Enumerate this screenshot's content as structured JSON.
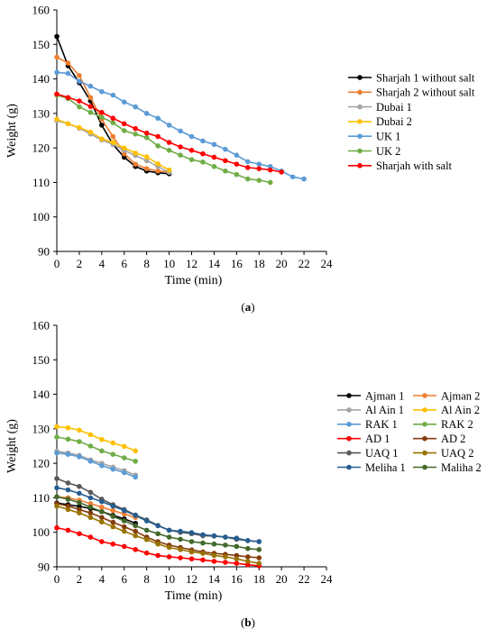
{
  "chart_data": [
    {
      "type": "line",
      "caption": "(a)",
      "caption_letter": "a",
      "xlabel": "Time (min)",
      "ylabel": "Weight (g)",
      "xlim": [
        0,
        24
      ],
      "ylim": [
        90,
        160
      ],
      "xticks": [
        0,
        2,
        4,
        6,
        8,
        10,
        12,
        14,
        16,
        18,
        20,
        22,
        24
      ],
      "yticks": [
        90,
        100,
        110,
        120,
        130,
        140,
        150,
        160
      ],
      "grid": false,
      "legend": "right",
      "series": [
        {
          "name": "Sharjah 1 without salt",
          "color": "#000000",
          "x": [
            0,
            1,
            2,
            3,
            4,
            5,
            6,
            7,
            8,
            9,
            10
          ],
          "y": [
            152.3,
            143.8,
            138.9,
            133.6,
            126.6,
            121.0,
            117.3,
            114.6,
            113.3,
            112.8,
            112.5
          ]
        },
        {
          "name": "Sharjah 2 without salt",
          "color": "#ED7D31",
          "x": [
            0,
            1,
            2,
            3,
            4,
            5,
            6,
            7,
            8,
            9,
            10
          ],
          "y": [
            146.3,
            144.6,
            141.0,
            134.6,
            128.3,
            123.3,
            118.3,
            115.3,
            114.0,
            113.3,
            113.0
          ]
        },
        {
          "name": "Dubai 1",
          "color": "#A5A5A5",
          "x": [
            0,
            1,
            2,
            3,
            4,
            5,
            6,
            7,
            8,
            9,
            10
          ],
          "y": [
            127.9,
            127.0,
            125.7,
            124.0,
            122.3,
            121.0,
            119.3,
            117.8,
            116.3,
            114.6,
            112.9
          ]
        },
        {
          "name": "Dubai 2",
          "color": "#FFC000",
          "x": [
            0,
            1,
            2,
            3,
            4,
            5,
            6,
            7,
            8,
            9,
            10
          ],
          "y": [
            128.3,
            127.0,
            125.9,
            124.6,
            122.6,
            121.6,
            120.0,
            118.5,
            117.4,
            115.4,
            113.6
          ]
        },
        {
          "name": "UK 1",
          "color": "#5B9BD5",
          "x": [
            0,
            1,
            2,
            3,
            4,
            5,
            6,
            7,
            8,
            9,
            10,
            11,
            12,
            13,
            14,
            15,
            16,
            17,
            18,
            19,
            20,
            21,
            22
          ],
          "y": [
            141.9,
            141.6,
            139.3,
            137.9,
            136.3,
            135.3,
            133.3,
            131.9,
            130.0,
            128.6,
            126.6,
            124.9,
            123.3,
            122.0,
            121.0,
            119.6,
            117.9,
            116.0,
            115.3,
            114.6,
            113.3,
            111.6,
            111.0
          ]
        },
        {
          "name": "UK 2",
          "color": "#70AD47",
          "x": [
            0,
            1,
            2,
            3,
            4,
            5,
            6,
            7,
            8,
            9,
            10,
            11,
            12,
            13,
            14,
            15,
            16,
            17,
            18,
            19
          ],
          "y": [
            135.3,
            134.3,
            131.9,
            130.3,
            128.9,
            127.3,
            125.0,
            124.0,
            123.0,
            120.6,
            119.3,
            117.9,
            116.6,
            115.9,
            114.6,
            113.3,
            112.3,
            111.0,
            110.6,
            110.0
          ]
        },
        {
          "name": "Sharjah with salt",
          "color": "#FF0000",
          "x": [
            0,
            1,
            2,
            3,
            4,
            5,
            6,
            7,
            8,
            9,
            10,
            11,
            12,
            13,
            14,
            15,
            16,
            17,
            18,
            19,
            20
          ],
          "y": [
            135.6,
            134.6,
            133.6,
            132.0,
            130.3,
            128.6,
            127.0,
            125.6,
            124.3,
            123.3,
            121.6,
            120.3,
            119.3,
            118.3,
            117.3,
            116.3,
            115.3,
            114.3,
            114.0,
            113.6,
            113.0
          ]
        }
      ]
    },
    {
      "type": "line",
      "caption": "(b)",
      "caption_letter": "b",
      "xlabel": "Time (min)",
      "ylabel": "Weight (g)",
      "xlim": [
        0,
        24
      ],
      "ylim": [
        90,
        160
      ],
      "xticks": [
        0,
        2,
        4,
        6,
        8,
        10,
        12,
        14,
        16,
        18,
        20,
        22,
        24
      ],
      "yticks": [
        90,
        100,
        110,
        120,
        130,
        140,
        150,
        160
      ],
      "grid": false,
      "legend": "right",
      "series": [
        {
          "name": "Ajman 1",
          "color": "#000000",
          "x": [
            0,
            1,
            2,
            3,
            4,
            5,
            6,
            7
          ],
          "y": [
            108.5,
            108.0,
            107.5,
            106.9,
            106.0,
            104.9,
            103.9,
            102.6
          ]
        },
        {
          "name": "Ajman 2",
          "color": "#ED7D31",
          "x": [
            0,
            1,
            2,
            3,
            4,
            5,
            6,
            7
          ],
          "y": [
            110.3,
            110.0,
            109.3,
            108.3,
            107.3,
            106.3,
            105.3,
            104.3
          ]
        },
        {
          "name": "Al Ain 1",
          "color": "#A5A5A5",
          "x": [
            0,
            1,
            2,
            3,
            4,
            5,
            6,
            7
          ],
          "y": [
            123.5,
            123.0,
            122.3,
            121.0,
            120.0,
            118.9,
            117.9,
            116.6
          ]
        },
        {
          "name": "Al Ain 2",
          "color": "#FFC000",
          "x": [
            0,
            1,
            2,
            3,
            4,
            5,
            6,
            7
          ],
          "y": [
            130.6,
            130.3,
            129.6,
            128.3,
            126.9,
            125.9,
            124.9,
            123.6
          ]
        },
        {
          "name": "RAK 1",
          "color": "#5B9BD5",
          "x": [
            0,
            1,
            2,
            3,
            4,
            5,
            6,
            7
          ],
          "y": [
            123.0,
            122.6,
            121.9,
            120.6,
            119.3,
            118.3,
            117.3,
            116.0
          ]
        },
        {
          "name": "RAK 2",
          "color": "#70AD47",
          "x": [
            0,
            1,
            2,
            3,
            4,
            5,
            6,
            7
          ],
          "y": [
            127.6,
            127.0,
            126.3,
            125.0,
            123.6,
            122.6,
            121.6,
            120.6
          ]
        },
        {
          "name": "AD 1",
          "color": "#FF0000",
          "x": [
            0,
            1,
            2,
            3,
            4,
            5,
            6,
            7,
            8,
            9,
            10,
            11,
            12,
            13,
            14,
            15,
            16,
            17,
            18
          ],
          "y": [
            101.3,
            100.6,
            99.6,
            98.6,
            97.3,
            96.6,
            95.9,
            95.0,
            94.0,
            93.3,
            92.9,
            92.6,
            92.3,
            92.0,
            91.6,
            91.3,
            91.0,
            90.6,
            90.3
          ]
        },
        {
          "name": "AD 2",
          "color": "#843C0C",
          "x": [
            0,
            1,
            2,
            3,
            4,
            5,
            6,
            7,
            8,
            9,
            10,
            11,
            12,
            13,
            14,
            15,
            16,
            17,
            18
          ],
          "y": [
            108.3,
            107.6,
            106.6,
            105.6,
            104.3,
            102.9,
            101.6,
            100.3,
            98.6,
            97.3,
            96.3,
            95.6,
            94.9,
            94.3,
            93.9,
            93.6,
            93.3,
            92.9,
            92.6
          ]
        },
        {
          "name": "UAQ 1",
          "color": "#595959",
          "x": [
            0,
            1,
            2,
            3,
            4,
            5,
            6,
            7,
            8,
            9,
            10,
            11,
            12,
            13,
            14,
            15,
            16,
            17,
            18
          ],
          "y": [
            115.6,
            114.3,
            113.3,
            111.6,
            109.6,
            108.0,
            106.6,
            105.0,
            103.6,
            102.0,
            100.6,
            100.0,
            99.6,
            99.0,
            98.9,
            98.6,
            98.0,
            97.6,
            97.3
          ]
        },
        {
          "name": "UAQ 2",
          "color": "#997300",
          "x": [
            0,
            1,
            2,
            3,
            4,
            5,
            6,
            7,
            8,
            9,
            10,
            11,
            12,
            13,
            14,
            15,
            16,
            17,
            18
          ],
          "y": [
            107.6,
            106.6,
            105.6,
            104.3,
            103.0,
            101.6,
            100.3,
            99.0,
            97.9,
            96.6,
            95.6,
            95.0,
            94.3,
            93.9,
            93.3,
            92.9,
            92.3,
            91.6,
            91.0
          ]
        },
        {
          "name": "Meliha 1",
          "color": "#255E91",
          "x": [
            0,
            1,
            2,
            3,
            4,
            5,
            6,
            7,
            8,
            9,
            10,
            11,
            12,
            13,
            14,
            15,
            16,
            17,
            18
          ],
          "y": [
            112.9,
            112.3,
            111.3,
            110.0,
            108.9,
            107.6,
            106.3,
            104.9,
            103.3,
            101.9,
            100.6,
            100.3,
            99.9,
            99.3,
            99.0,
            98.6,
            98.3,
            97.6,
            97.3
          ]
        },
        {
          "name": "Maliha 2",
          "color": "#43682B",
          "x": [
            0,
            1,
            2,
            3,
            4,
            5,
            6,
            7,
            8,
            9,
            10,
            11,
            12,
            13,
            14,
            15,
            16,
            17,
            18
          ],
          "y": [
            110.3,
            109.6,
            108.6,
            107.3,
            106.0,
            104.6,
            103.3,
            101.9,
            100.6,
            99.6,
            98.6,
            98.0,
            97.3,
            96.9,
            96.6,
            96.3,
            95.9,
            95.3,
            95.0
          ]
        }
      ]
    }
  ]
}
